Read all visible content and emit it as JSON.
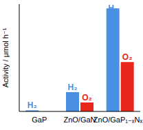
{
  "chart_data": {
    "type": "bar",
    "y_label": "Activity / μmol h⁻¹",
    "categories": [
      "GaP",
      "ZnO/GaN",
      "ZnO/GaP₁₋ₓNₓ"
    ],
    "series": [
      {
        "name": "H₂",
        "color": "#4a90e2",
        "values": [
          0.3,
          5.4,
          28.8
        ]
      },
      {
        "name": "O₂",
        "color": "#e8261c",
        "values": [
          null,
          2.5,
          13.8
        ]
      }
    ],
    "ylim": [
      0,
      30
    ],
    "tick_labels": false
  }
}
